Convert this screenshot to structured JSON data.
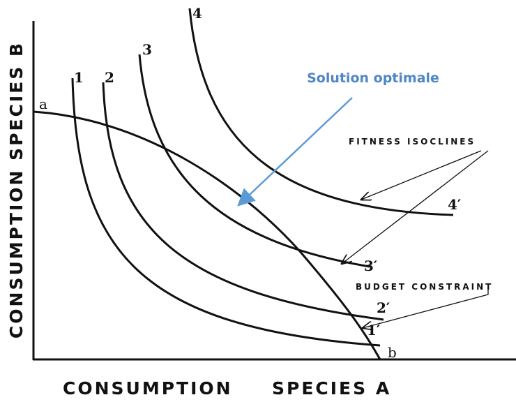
{
  "axes": {
    "y_label": "CONSUMPTION SPECIES B",
    "x_label_left": "CONSUMPTION",
    "x_label_right": "SPECIES A"
  },
  "curves": {
    "isocline_start_labels": [
      "1",
      "2",
      "3",
      "4"
    ],
    "isocline_end_labels": [
      "1′",
      "2′",
      "3′",
      "4′"
    ],
    "budget_start": "a",
    "budget_end": "b"
  },
  "annotations": {
    "solution": "Solution optimale",
    "fitness": "FITNESS ISOCLINES",
    "budget": "BUDGET CONSTRAINT"
  }
}
